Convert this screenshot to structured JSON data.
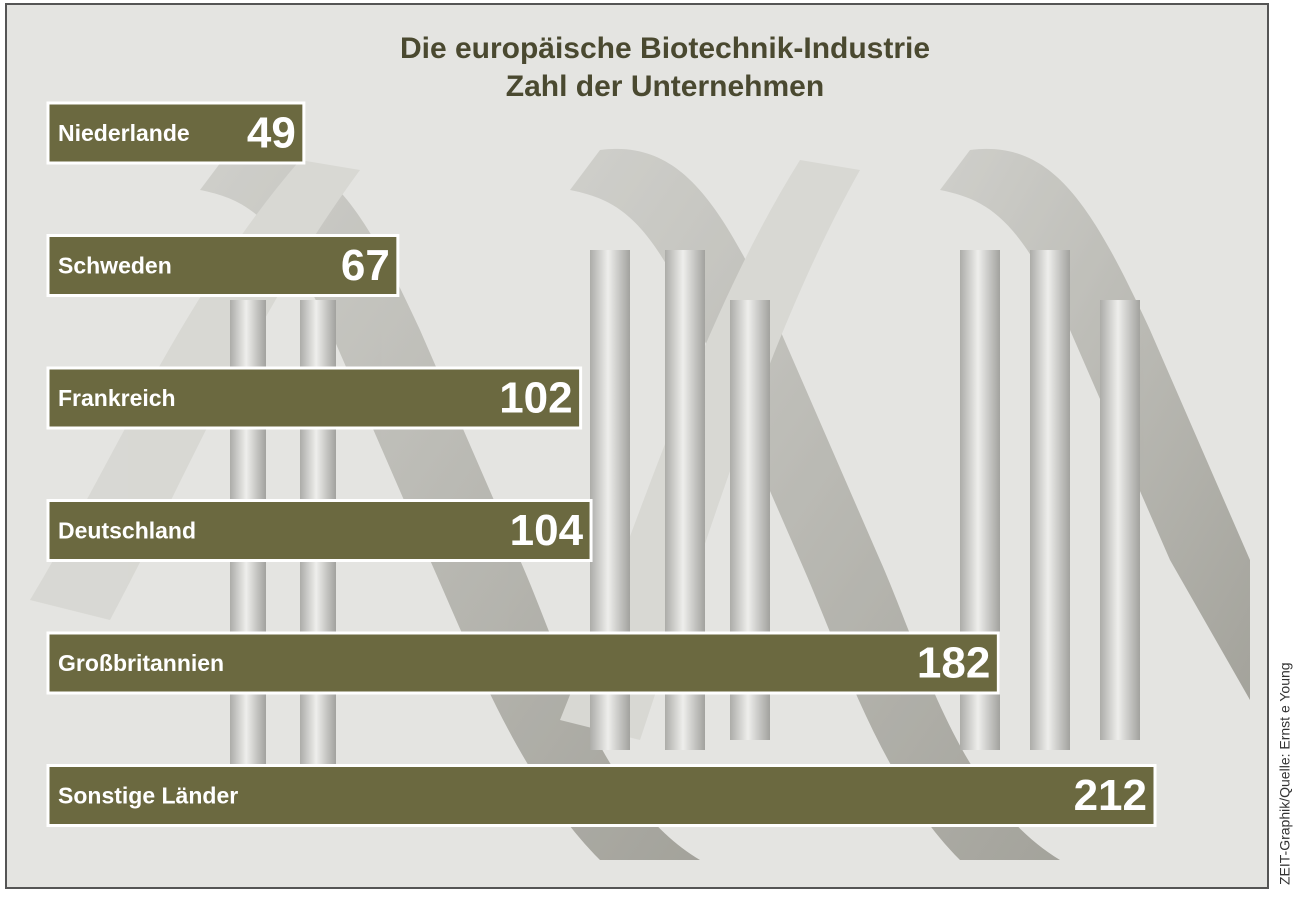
{
  "chart_data": {
    "type": "bar",
    "orientation": "horizontal",
    "title": "Die europäische Biotechnik-Industrie",
    "subtitle": "Zahl der Unternehmen",
    "source": "ZEIT-Graphik/Quelle: Ernst e Young",
    "categories": [
      "Niederlande",
      "Schweden",
      "Frankreich",
      "Deutschland",
      "Großbritannien",
      "Sonstige Länder"
    ],
    "values": [
      49,
      67,
      102,
      104,
      182,
      212
    ],
    "color": "#6b6940"
  }
}
